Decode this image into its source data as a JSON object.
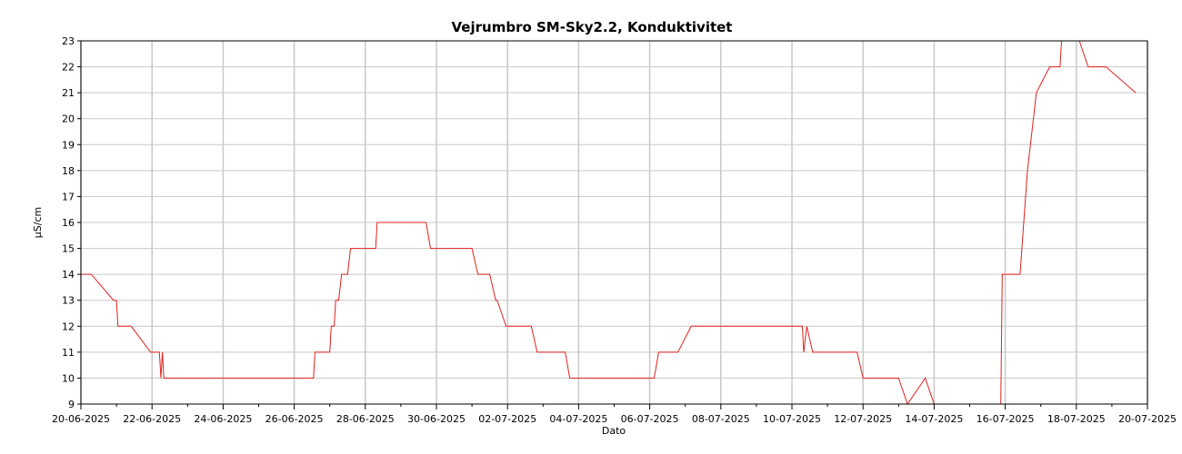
{
  "chart_data": {
    "type": "line",
    "title": "Vejrumbro SM-Sky2.2, Konduktivitet",
    "xlabel": "Dato",
    "ylabel": "µS/cm",
    "ylim": [
      9,
      23
    ],
    "xlim": [
      "2025-06-20",
      "2025-07-20"
    ],
    "grid": true,
    "legend": "none",
    "colors": {
      "line": "#e0201c",
      "grid": "#c8c8c8",
      "axis": "#000000"
    },
    "x_tick_labels": [
      "20-06-2025",
      "22-06-2025",
      "24-06-2025",
      "26-06-2025",
      "28-06-2025",
      "30-06-2025",
      "02-07-2025",
      "04-07-2025",
      "06-07-2025",
      "08-07-2025",
      "10-07-2025",
      "12-07-2025",
      "14-07-2025",
      "16-07-2025",
      "18-07-2025",
      "20-07-2025"
    ],
    "y_tick_labels": [
      "9",
      "10",
      "11",
      "12",
      "13",
      "14",
      "15",
      "16",
      "17",
      "18",
      "19",
      "20",
      "21",
      "22",
      "23"
    ],
    "series": [
      {
        "points": [
          [
            "2025-06-20 00:00",
            14
          ],
          [
            "2025-06-20 07:00",
            14
          ],
          [
            "2025-06-20 22:00",
            13
          ],
          [
            "2025-06-21 00:00",
            13
          ],
          [
            "2025-06-21 01:00",
            12
          ],
          [
            "2025-06-21 10:00",
            12
          ],
          [
            "2025-06-21 23:00",
            11
          ],
          [
            "2025-06-22 05:00",
            11
          ],
          [
            "2025-06-22 06:00",
            10
          ],
          [
            "2025-06-22 07:00",
            11
          ],
          [
            "2025-06-22 08:00",
            10
          ],
          [
            "2025-06-26 13:00",
            10
          ],
          [
            "2025-06-26 14:00",
            11
          ],
          [
            "2025-06-27 00:00",
            11
          ],
          [
            "2025-06-27 01:00",
            12
          ],
          [
            "2025-06-27 03:00",
            12
          ],
          [
            "2025-06-27 04:00",
            13
          ],
          [
            "2025-06-27 06:00",
            13
          ],
          [
            "2025-06-27 08:00",
            14
          ],
          [
            "2025-06-27 12:00",
            14
          ],
          [
            "2025-06-27 14:00",
            15
          ],
          [
            "2025-06-28 07:00",
            15
          ],
          [
            "2025-06-28 08:00",
            16
          ],
          [
            "2025-06-29 17:00",
            16
          ],
          [
            "2025-06-29 20:00",
            15
          ],
          [
            "2025-07-01 00:00",
            15
          ],
          [
            "2025-07-01 04:00",
            14
          ],
          [
            "2025-07-01 12:00",
            14
          ],
          [
            "2025-07-01 16:00",
            13
          ],
          [
            "2025-07-01 17:00",
            13
          ],
          [
            "2025-07-01 23:00",
            12
          ],
          [
            "2025-07-02 16:00",
            12
          ],
          [
            "2025-07-02 20:00",
            11
          ],
          [
            "2025-07-03 15:00",
            11
          ],
          [
            "2025-07-03 18:00",
            10
          ],
          [
            "2025-07-06 03:00",
            10
          ],
          [
            "2025-07-06 06:00",
            11
          ],
          [
            "2025-07-06 19:00",
            11
          ],
          [
            "2025-07-07 04:00",
            12
          ],
          [
            "2025-07-10 07:00",
            12
          ],
          [
            "2025-07-10 08:00",
            11
          ],
          [
            "2025-07-10 10:00",
            12
          ],
          [
            "2025-07-10 14:00",
            11
          ],
          [
            "2025-07-11 20:00",
            11
          ],
          [
            "2025-07-12 00:00",
            10
          ],
          [
            "2025-07-13 00:00",
            10
          ],
          [
            "2025-07-13 06:00",
            9
          ],
          [
            "2025-07-13 18:00",
            10
          ],
          [
            "2025-07-14 00:00",
            9
          ],
          [
            "2025-07-15 21:00",
            9
          ],
          [
            "2025-07-15 22:00",
            14
          ],
          [
            "2025-07-16 10:00",
            14
          ],
          [
            "2025-07-16 15:00",
            18
          ],
          [
            "2025-07-16 17:00",
            19
          ],
          [
            "2025-07-16 19:00",
            20
          ],
          [
            "2025-07-16 21:00",
            21
          ],
          [
            "2025-07-17 06:00",
            22
          ],
          [
            "2025-07-17 13:00",
            22
          ],
          [
            "2025-07-17 14:00",
            23
          ],
          [
            "2025-07-18 02:00",
            23
          ],
          [
            "2025-07-18 08:00",
            22
          ],
          [
            "2025-07-18 20:00",
            22
          ],
          [
            "2025-07-19 16:00",
            21
          ]
        ]
      }
    ]
  }
}
